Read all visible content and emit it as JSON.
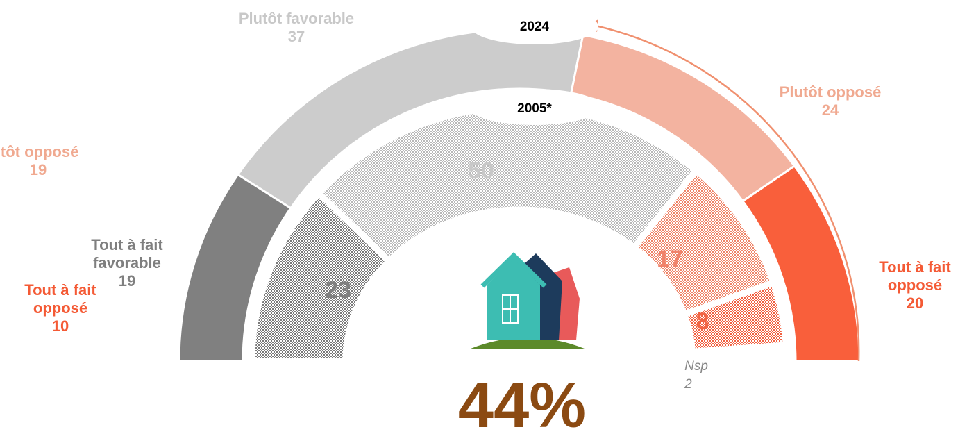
{
  "chart_data": {
    "type": "semi-donut",
    "headline": "44%",
    "series": [
      {
        "name": "2024",
        "categories": [
          "Tout à fait favorable",
          "Plutôt favorable",
          "Plutôt opposé",
          "Tout à fait opposé"
        ],
        "values": [
          19,
          37,
          24,
          20
        ],
        "colors": [
          "#808080",
          "#cccccc",
          "#f3b3a0",
          "#f95f3b"
        ]
      },
      {
        "name": "2005*",
        "categories": [
          null,
          null,
          null,
          null,
          "Nsp"
        ],
        "values": [
          23,
          50,
          17,
          8,
          2
        ],
        "colors": [
          "#7a7a7a",
          "#b8b8b8",
          "#ef8468",
          "#f26040",
          "#ffffff"
        ]
      }
    ],
    "annotations": [
      {
        "text": "Plutôt opposé",
        "value": 19,
        "color": "#f0a990"
      },
      {
        "text": "Tout à fait opposé",
        "value": 10,
        "color": "#f45a35"
      }
    ]
  }
}
